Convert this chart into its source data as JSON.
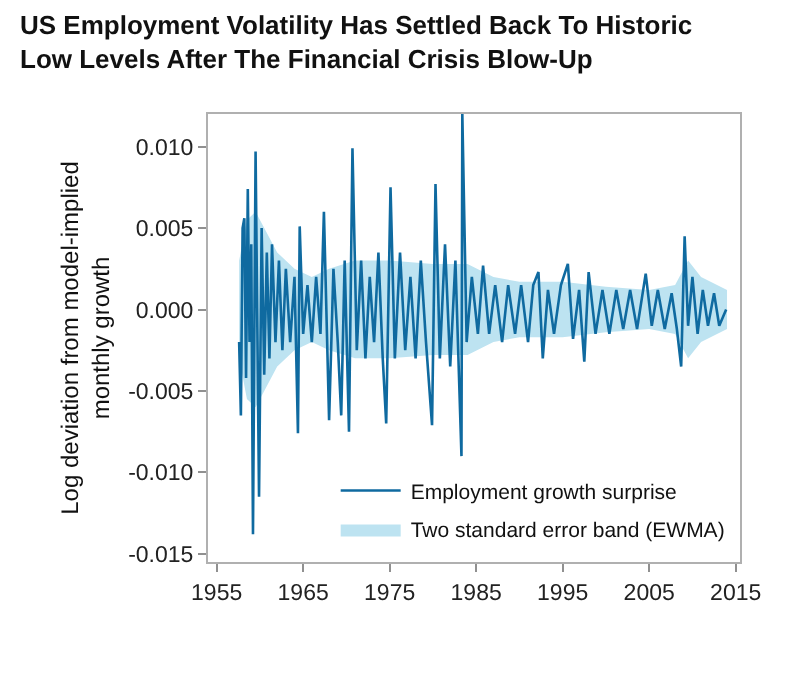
{
  "chart_data": {
    "type": "line",
    "title": "US Employment Volatility Has Settled Back To Historic Low Levels After The Financial Crisis Blow-Up",
    "ylabel": "Log deviation from model-implied monthly growth",
    "xlim": [
      1954,
      2015.5
    ],
    "xticks": [
      1955,
      1965,
      1975,
      1985,
      1995,
      2005,
      2015
    ],
    "ylim": [
      -0.0155,
      0.012
    ],
    "yticks": [
      {
        "value": 0.01,
        "label": "0.010"
      },
      {
        "value": 0.005,
        "label": "0.005"
      },
      {
        "value": 0,
        "label": "0.000"
      },
      {
        "value": -0.005,
        "label": "-0.005"
      },
      {
        "value": -0.01,
        "label": "-0.010"
      },
      {
        "value": -0.015,
        "label": "-0.015"
      }
    ],
    "grid": false,
    "legend": "bottom right",
    "marker": "none",
    "line_style": "solid",
    "series": [
      {
        "name": "Employment growth surprise",
        "color": "#0f6aa0",
        "x": [
          1957.6,
          1957.8,
          1958.0,
          1958.2,
          1958.4,
          1958.6,
          1958.8,
          1959.0,
          1959.2,
          1959.5,
          1959.9,
          1960.2,
          1960.5,
          1960.8,
          1961.1,
          1961.4,
          1961.8,
          1962.2,
          1962.6,
          1963.0,
          1963.5,
          1964.0,
          1964.4,
          1964.6,
          1965.0,
          1965.5,
          1966.0,
          1966.5,
          1967.0,
          1967.4,
          1968.0,
          1968.5,
          1969.0,
          1969.4,
          1969.8,
          1970.3,
          1970.7,
          1971.2,
          1971.7,
          1972.2,
          1972.7,
          1973.2,
          1973.7,
          1974.2,
          1974.6,
          1975.1,
          1975.6,
          1976.2,
          1976.8,
          1977.4,
          1978.0,
          1978.6,
          1979.2,
          1979.9,
          1980.3,
          1980.8,
          1981.4,
          1982.0,
          1982.6,
          1983.3,
          1983.4,
          1983.9,
          1984.5,
          1985.2,
          1985.8,
          1986.5,
          1987.2,
          1988.0,
          1988.7,
          1989.5,
          1990.2,
          1991.0,
          1991.6,
          1992.2,
          1992.7,
          1993.3,
          1994.0,
          1994.8,
          1995.6,
          1996.2,
          1996.9,
          1997.5,
          1998.0,
          1998.8,
          1999.6,
          2000.4,
          2001.2,
          2002.0,
          2002.8,
          2003.6,
          2004.6,
          2005.3,
          2006.0,
          2006.8,
          2007.6,
          2008.2,
          2008.7,
          2009.1,
          2009.5,
          2010.0,
          2010.6,
          2011.2,
          2011.8,
          2012.5,
          2013.1,
          2013.9
        ],
        "values": [
          -0.002,
          -0.0065,
          0.005,
          0.0056,
          -0.0042,
          0.0074,
          -0.002,
          0.004,
          -0.0138,
          0.0097,
          -0.0115,
          0.005,
          -0.004,
          0.0035,
          -0.003,
          0.004,
          -0.002,
          0.003,
          -0.0025,
          0.0025,
          -0.002,
          0.002,
          -0.0076,
          0.0051,
          -0.0015,
          0.0015,
          -0.002,
          0.002,
          -0.0015,
          0.006,
          -0.0068,
          0.0025,
          -0.002,
          -0.0065,
          0.003,
          -0.0075,
          0.0099,
          -0.0025,
          0.003,
          -0.003,
          0.002,
          -0.002,
          0.0035,
          -0.003,
          -0.007,
          0.0075,
          -0.003,
          0.0035,
          -0.0025,
          0.002,
          -0.003,
          0.003,
          -0.002,
          -0.0071,
          0.0077,
          -0.003,
          0.004,
          -0.0035,
          0.003,
          -0.009,
          0.012,
          -0.002,
          0.002,
          -0.0015,
          0.0027,
          -0.0015,
          0.0015,
          -0.002,
          0.0015,
          -0.0015,
          0.0015,
          -0.002,
          0.0015,
          0.0023,
          -0.003,
          0.0012,
          -0.0015,
          0.0015,
          0.0028,
          -0.0018,
          0.0012,
          -0.0032,
          0.0023,
          -0.0015,
          0.0012,
          -0.0015,
          0.0012,
          -0.0012,
          0.0012,
          -0.0012,
          0.0022,
          -0.001,
          0.0012,
          -0.0012,
          0.001,
          -0.0012,
          -0.0035,
          0.0045,
          -0.001,
          0.002,
          -0.0015,
          0.0012,
          -0.001,
          0.001,
          -0.001,
          0
        ]
      },
      {
        "name": "Two standard error band (EWMA)",
        "type": "area",
        "color": "#bde3f1",
        "x": [
          1957.6,
          1958.5,
          1959.5,
          1960.5,
          1962,
          1964,
          1966,
          1968,
          1971,
          1975,
          1980,
          1984,
          1987,
          1990,
          1995,
          2000,
          2005,
          2008,
          2009.5,
          2011,
          2014
        ],
        "values": [
          null,
          null,
          null,
          null,
          null,
          null,
          null,
          null,
          null,
          null,
          null,
          null,
          null,
          null,
          null,
          null,
          null,
          null,
          null,
          null,
          null
        ],
        "lower": [
          -0.003,
          -0.0055,
          -0.006,
          -0.005,
          -0.0035,
          -0.0025,
          -0.002,
          -0.0025,
          -0.003,
          -0.003,
          -0.0028,
          -0.0028,
          -0.002,
          -0.0017,
          -0.0017,
          -0.0014,
          -0.0012,
          -0.0015,
          -0.003,
          -0.002,
          -0.0012
        ],
        "upper": [
          0.003,
          0.0055,
          0.006,
          0.005,
          0.0035,
          0.0025,
          0.002,
          0.0025,
          0.003,
          0.003,
          0.0028,
          0.0028,
          0.002,
          0.0017,
          0.0017,
          0.0014,
          0.0012,
          0.0015,
          0.003,
          0.002,
          0.0012
        ]
      }
    ]
  }
}
